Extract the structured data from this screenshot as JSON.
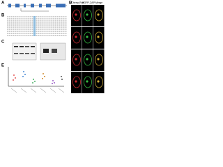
{
  "panels": {
    "a": "A",
    "b": "B",
    "c": "C",
    "d": "D",
    "e": "E"
  },
  "microscopy": {
    "columns": [
      "mCherry-Rab",
      "EGFP-ZAP",
      "Merge"
    ]
  }
}
